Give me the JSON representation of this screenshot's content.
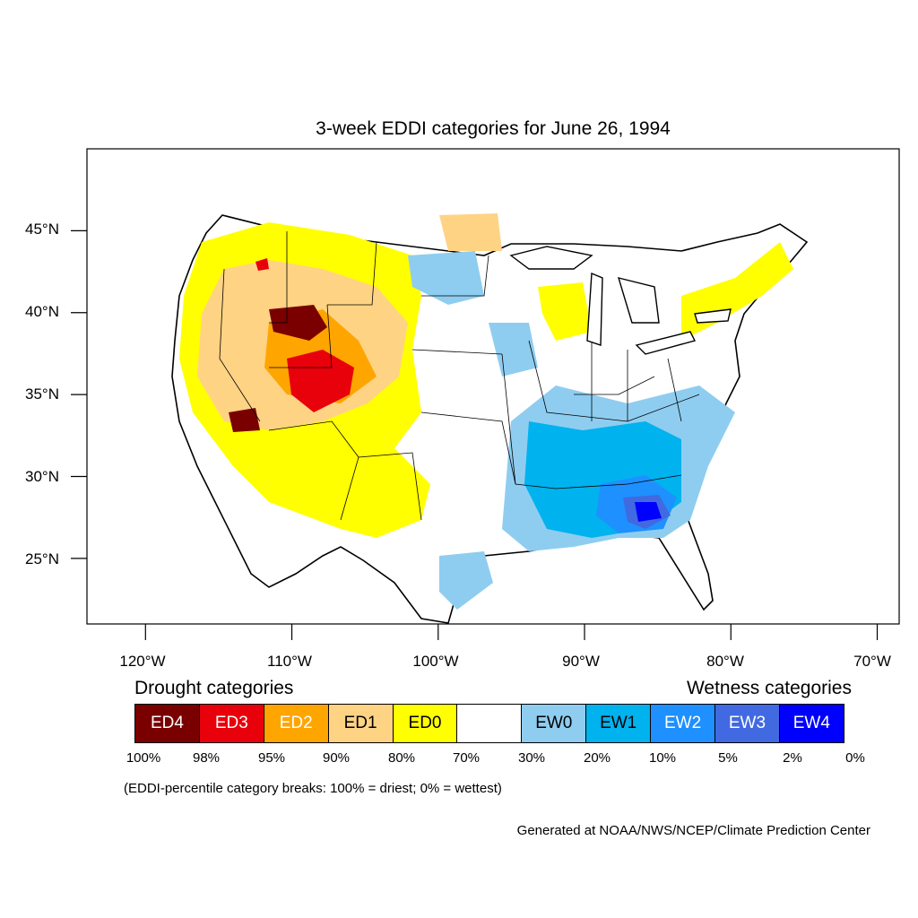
{
  "title": "3-week EDDI categories for June 26, 1994",
  "axes": {
    "lat_labels": [
      "45°N",
      "40°N",
      "35°N",
      "30°N",
      "25°N"
    ],
    "lat_values": [
      45,
      40,
      35,
      30,
      25
    ],
    "lon_labels": [
      "120°W",
      "110°W",
      "100°W",
      "90°W",
      "80°W",
      "70°W"
    ],
    "lon_values": [
      -120,
      -110,
      -100,
      -90,
      -80,
      -70
    ],
    "lat_range": [
      21,
      50
    ],
    "lon_range": [
      -124,
      -68.5
    ]
  },
  "legend": {
    "drought_heading": "Drought categories",
    "wetness_heading": "Wetness categories",
    "categories": [
      {
        "label": "ED4",
        "color": "#7a0000",
        "text_color": "#ffffff"
      },
      {
        "label": "ED3",
        "color": "#e8000b",
        "text_color": "#ffffff"
      },
      {
        "label": "ED2",
        "color": "#ffa500",
        "text_color": "#ffffff"
      },
      {
        "label": "ED1",
        "color": "#ffd384",
        "text_color": "#000000"
      },
      {
        "label": "ED0",
        "color": "#ffff00",
        "text_color": "#000000"
      },
      {
        "label": "",
        "color": "#ffffff",
        "text_color": "#000000"
      },
      {
        "label": "EW0",
        "color": "#8fcdf0",
        "text_color": "#000000"
      },
      {
        "label": "EW1",
        "color": "#00b2ee",
        "text_color": "#000000"
      },
      {
        "label": "EW2",
        "color": "#1e90ff",
        "text_color": "#ffffff"
      },
      {
        "label": "EW3",
        "color": "#4169e1",
        "text_color": "#ffffff"
      },
      {
        "label": "EW4",
        "color": "#0000ff",
        "text_color": "#ffffff"
      }
    ],
    "breaks": [
      "100%",
      "98%",
      "95%",
      "90%",
      "80%",
      "70%",
      "30%",
      "20%",
      "10%",
      "5%",
      "2%",
      "0%"
    ]
  },
  "note": "(EDDI-percentile category breaks: 100% = driest; 0% = wettest)",
  "credit": "Generated at NOAA/NWS/NCEP/Climate Prediction Center"
}
